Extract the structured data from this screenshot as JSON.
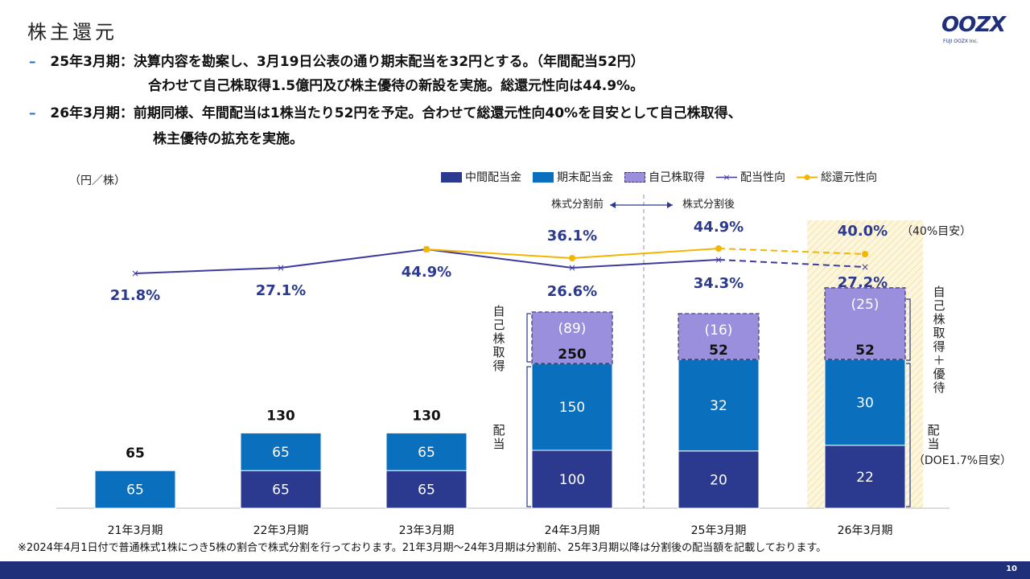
{
  "page": {
    "title": "株主還元",
    "logo_text": "OOZX",
    "logo_sub": "FUJI OOZX Inc.",
    "bullets": [
      {
        "dash": "–",
        "text": "25年3月期：決算内容を勘案し、3月19日公表の通り期末配当を32円とする。（年間配当52円）"
      },
      {
        "dash": "",
        "text": "合わせて自己株取得1.5億円及び株主優待の新設を実施。総還元性向は44.9%。"
      },
      {
        "dash": "–",
        "text": "26年3月期：前期同様、年間配当は1株当たり52円を予定。合わせて総還元性向40%を目安として自己株取得、"
      },
      {
        "dash": "",
        "text": "株主優待の拡充を実施。"
      }
    ],
    "note": "※2024年4月1日付で普通株式1株につき5株の割合で株式分割を行っております。21年3月期～24年3月期は分割前、25年3月期以降は分割後の配当額を記載しております。",
    "page_number": "10"
  },
  "chart_data": {
    "type": "bar",
    "unit_label": "（円／株）",
    "categories": [
      "21年3月期",
      "22年3月期",
      "23年3月期",
      "24年3月期",
      "25年3月期",
      "26年3月期"
    ],
    "series": [
      {
        "name": "中間配当金",
        "color": "#2b3a8f",
        "values": [
          0,
          65,
          65,
          100,
          20,
          22
        ],
        "labels": [
          "",
          "65",
          "65",
          "100",
          "20",
          "22"
        ]
      },
      {
        "name": "期末配当金",
        "color": "#0a6fbd",
        "values": [
          65,
          65,
          65,
          150,
          32,
          30
        ],
        "labels": [
          "65",
          "65",
          "65",
          "150",
          "32",
          "30"
        ]
      },
      {
        "name": "自己株取得",
        "color": "#9a8fdc",
        "values": [
          0,
          0,
          0,
          89,
          16,
          25
        ],
        "labels": [
          "",
          "",
          "",
          "(89)",
          "(16)",
          "(25)"
        ]
      }
    ],
    "dividend_totals": [
      "65",
      "130",
      "130",
      "250",
      "52",
      "52"
    ],
    "payout_ratio": {
      "name": "配当性向",
      "color": "#3d3a9e",
      "values": [
        21.8,
        27.1,
        44.9,
        26.6,
        34.3,
        27.2
      ],
      "labels": [
        "21.8%",
        "27.1%",
        "44.9%",
        "26.6%",
        "34.3%",
        "27.2%"
      ]
    },
    "total_return_ratio": {
      "name": "総還元性向",
      "color": "#f2b600",
      "values": [
        null,
        null,
        44.9,
        36.1,
        44.9,
        40.0
      ],
      "labels": [
        "",
        "",
        "",
        "36.1%",
        "44.9%",
        "40.0%"
      ]
    },
    "annotations": {
      "split_before": "株式分割前",
      "split_after": "株式分割後",
      "target_40": "（40%目安）",
      "left_buyback": "自己株取得",
      "left_dividend": "配当",
      "right_buyback": "自己株取得＋優待",
      "right_dividend": "配当",
      "right_doe": "（DOE1.7%目安）"
    },
    "legend_position": "top-right",
    "grid": false
  }
}
